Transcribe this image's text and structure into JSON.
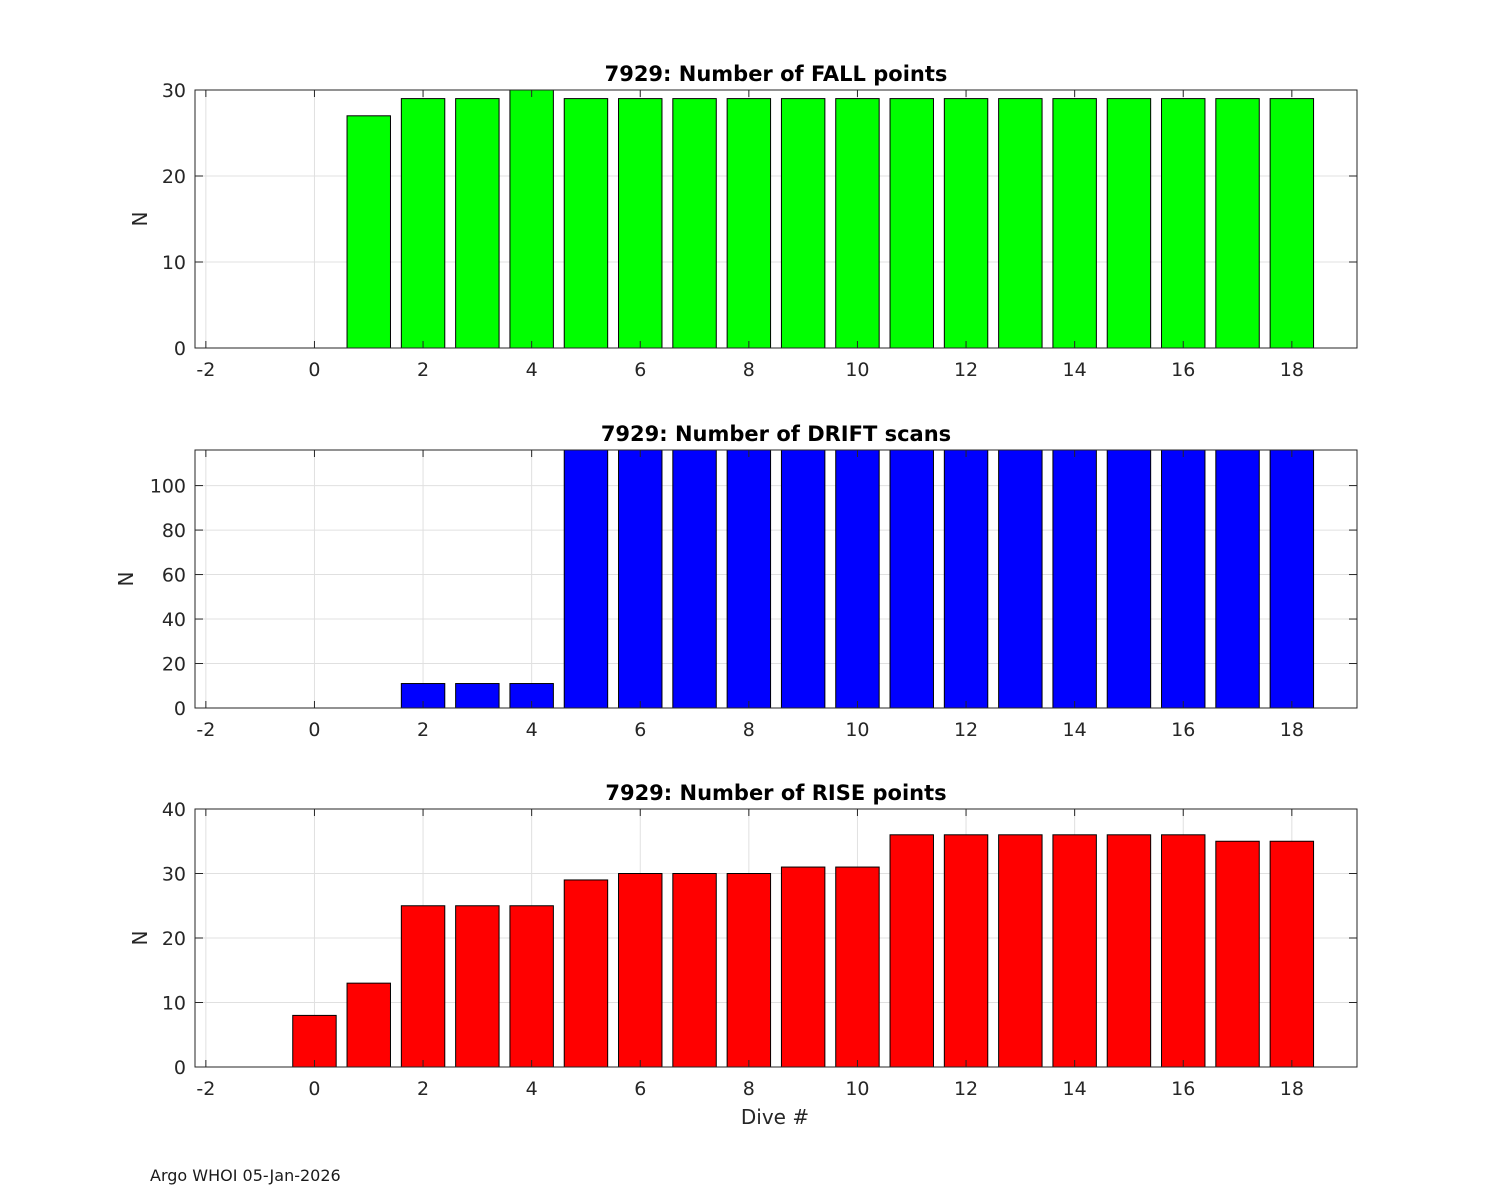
{
  "footer": "Argo WHOI 05-Jan-2026",
  "colors": {
    "fall": "#00ff00",
    "drift": "#0000ff",
    "rise": "#ff0000",
    "grid": "#e0e0e0",
    "axis": "#262626",
    "bar_edge": "#000000"
  },
  "chart_data": [
    {
      "type": "bar",
      "title": "7929: Number of FALL points",
      "xlabel": "",
      "ylabel": "N",
      "xlim": [
        -2.2,
        19.2
      ],
      "ylim": [
        0,
        30
      ],
      "xticks": [
        -2,
        0,
        2,
        4,
        6,
        8,
        10,
        12,
        14,
        16,
        18
      ],
      "yticks": [
        0,
        10,
        20,
        30
      ],
      "grid": true,
      "x": [
        1,
        2,
        3,
        4,
        5,
        6,
        7,
        8,
        9,
        10,
        11,
        12,
        13,
        14,
        15,
        16,
        17,
        18
      ],
      "values": [
        27,
        29,
        29,
        30,
        29,
        29,
        29,
        29,
        29,
        29,
        29,
        29,
        29,
        29,
        29,
        29,
        29,
        29
      ],
      "color_key": "fall"
    },
    {
      "type": "bar",
      "title": "7929: Number of DRIFT scans",
      "xlabel": "",
      "ylabel": "N",
      "xlim": [
        -2.2,
        19.2
      ],
      "ylim": [
        0,
        116
      ],
      "xticks": [
        -2,
        0,
        2,
        4,
        6,
        8,
        10,
        12,
        14,
        16,
        18
      ],
      "yticks": [
        0,
        20,
        40,
        60,
        80,
        100
      ],
      "grid": true,
      "x": [
        2,
        3,
        4,
        5,
        6,
        7,
        8,
        9,
        10,
        11,
        12,
        13,
        14,
        15,
        16,
        17,
        18
      ],
      "values": [
        11,
        11,
        11,
        116,
        116,
        116,
        116,
        116,
        116,
        116,
        116,
        116,
        116,
        116,
        116,
        116,
        116
      ],
      "color_key": "drift"
    },
    {
      "type": "bar",
      "title": "7929: Number of RISE points",
      "xlabel": "Dive #",
      "ylabel": "N",
      "xlim": [
        -2.2,
        19.2
      ],
      "ylim": [
        0,
        40
      ],
      "xticks": [
        -2,
        0,
        2,
        4,
        6,
        8,
        10,
        12,
        14,
        16,
        18
      ],
      "yticks": [
        0,
        10,
        20,
        30,
        40
      ],
      "grid": true,
      "x": [
        0,
        1,
        2,
        3,
        4,
        5,
        6,
        7,
        8,
        9,
        10,
        11,
        12,
        13,
        14,
        15,
        16,
        17,
        18
      ],
      "values": [
        8,
        13,
        25,
        25,
        25,
        29,
        30,
        30,
        30,
        31,
        31,
        36,
        36,
        36,
        36,
        36,
        36,
        35,
        35
      ],
      "color_key": "rise"
    }
  ]
}
